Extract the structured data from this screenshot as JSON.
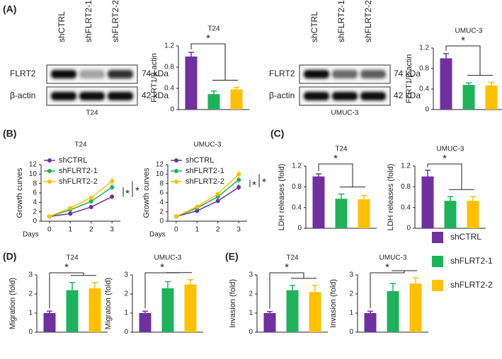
{
  "panel_labels": [
    "(A)",
    "(B)",
    "(C)",
    "(D)",
    "(E)"
  ],
  "blots": [
    {
      "lanes": [
        "shCTRL",
        "shFLRT2-1",
        "shFLRT2-2"
      ],
      "rows": [
        {
          "protein": "FLRT2",
          "size": "74 kDa"
        },
        {
          "protein": "β-actin",
          "size": "42 kDa"
        }
      ],
      "cell_line": "T24"
    },
    {
      "lanes": [
        "shCTRL",
        "shFLRT2-1",
        "shFLRT2-2"
      ],
      "rows": [
        {
          "protein": "FLRT2",
          "size": "74 kDa"
        },
        {
          "protein": "β-actin",
          "size": "42 kDa"
        }
      ],
      "cell_line": "UMUC-3"
    }
  ],
  "legend": [
    {
      "name": "shCTRL",
      "color": "#7030a0"
    },
    {
      "name": "shFLRT2-1",
      "color": "#1db35a"
    },
    {
      "name": "shFLRT2-2",
      "color": "#ffc000"
    }
  ],
  "chart_data": [
    {
      "type": "bar",
      "title": "T24",
      "y_label": "FLRT1/β-actin",
      "categories": [
        null,
        null,
        null
      ],
      "values": [
        1.0,
        0.29,
        0.38
      ],
      "errors": [
        0.08,
        0.06,
        0.04
      ],
      "colors": [
        "#7030a0",
        "#1db35a",
        "#ffc000"
      ],
      "ylim": [
        0,
        1.2
      ],
      "yticks": [
        0,
        0.4,
        0.8,
        1.2
      ],
      "annotations": [
        "*"
      ]
    },
    {
      "type": "bar",
      "title": "UMUC-3",
      "y_label": "FLRT1/β-actin",
      "categories": [
        null,
        null,
        null
      ],
      "values": [
        1.0,
        0.48,
        0.47
      ],
      "errors": [
        0.09,
        0.04,
        0.06
      ],
      "colors": [
        "#7030a0",
        "#1db35a",
        "#ffc000"
      ],
      "ylim": [
        0,
        1.2
      ],
      "yticks": [
        0,
        0.4,
        0.8,
        1.2
      ],
      "annotations": [
        "*"
      ]
    },
    {
      "type": "line",
      "title": "T24",
      "x_label": "Days",
      "y_label": "Growth curves",
      "x": [
        0,
        1,
        2,
        3
      ],
      "xlim": [
        -0.4,
        3.4
      ],
      "xticks": [
        0,
        1,
        2,
        3
      ],
      "ylim": [
        0,
        12
      ],
      "yticks": [
        0,
        2,
        4,
        6,
        8,
        10,
        12
      ],
      "series": [
        {
          "name": "shCTRL",
          "color": "#7030a0",
          "values": [
            1,
            1.6,
            3,
            5.2
          ],
          "errors": [
            0.1,
            0.2,
            0.3,
            0.5
          ]
        },
        {
          "name": "shFLRT2-1",
          "color": "#1db35a",
          "values": [
            1,
            2.4,
            4.2,
            7.2
          ],
          "errors": [
            0.1,
            0.2,
            0.3,
            0.6
          ]
        },
        {
          "name": "shFLRT2-2",
          "color": "#ffc000",
          "values": [
            1,
            2.8,
            5,
            8.5
          ],
          "errors": [
            0.1,
            0.3,
            0.4,
            0.8
          ]
        }
      ],
      "annotations": [
        "*",
        "*"
      ]
    },
    {
      "type": "line",
      "title": "UMUC-3",
      "x_label": "Days",
      "y_label": "Growth curves",
      "x": [
        0,
        1,
        2,
        3
      ],
      "xlim": [
        -0.4,
        3.4
      ],
      "xticks": [
        0,
        1,
        2,
        3
      ],
      "ylim": [
        0,
        12
      ],
      "yticks": [
        0,
        2,
        4,
        6,
        8,
        10,
        12
      ],
      "series": [
        {
          "name": "shCTRL",
          "color": "#7030a0",
          "values": [
            1,
            2.2,
            4.3,
            7.2
          ],
          "errors": [
            0.1,
            0.2,
            0.3,
            0.6
          ]
        },
        {
          "name": "shFLRT2-1",
          "color": "#1db35a",
          "values": [
            1,
            2.8,
            5.2,
            8.8
          ],
          "errors": [
            0.1,
            0.2,
            0.3,
            0.7
          ]
        },
        {
          "name": "shFLRT2-2",
          "color": "#ffc000",
          "values": [
            1,
            3.1,
            5.8,
            10
          ],
          "errors": [
            0.1,
            0.3,
            0.4,
            0.8
          ]
        }
      ],
      "annotations": [
        "*",
        "*"
      ]
    },
    {
      "type": "bar",
      "title": "T24",
      "y_label": "LDH releases (fold)",
      "categories": [
        null,
        null,
        null
      ],
      "values": [
        1.0,
        0.57,
        0.56
      ],
      "errors": [
        0.05,
        0.09,
        0.07
      ],
      "colors": [
        "#7030a0",
        "#1db35a",
        "#ffc000"
      ],
      "ylim": [
        0,
        1.2
      ],
      "yticks": [
        0,
        0.4,
        0.8,
        1.2
      ],
      "annotations": [
        "*"
      ]
    },
    {
      "type": "bar",
      "title": "UMUC-3",
      "y_label": "LDH releases (fold)",
      "categories": [
        null,
        null,
        null
      ],
      "values": [
        1.0,
        0.53,
        0.53
      ],
      "errors": [
        0.12,
        0.08,
        0.08
      ],
      "colors": [
        "#7030a0",
        "#1db35a",
        "#ffc000"
      ],
      "ylim": [
        0,
        1.2
      ],
      "yticks": [
        0,
        0.4,
        0.8,
        1.2
      ],
      "annotations": [
        "*"
      ]
    },
    {
      "type": "bar",
      "title": "T24",
      "y_label": "Migration (fold)",
      "categories": [
        null,
        null,
        null
      ],
      "values": [
        1.0,
        2.2,
        2.3
      ],
      "errors": [
        0.1,
        0.4,
        0.3
      ],
      "colors": [
        "#7030a0",
        "#1db35a",
        "#ffc000"
      ],
      "ylim": [
        0,
        3
      ],
      "yticks": [
        0,
        1,
        2,
        3
      ],
      "annotations": [
        "*"
      ]
    },
    {
      "type": "bar",
      "title": "UMUC-3",
      "y_label": "Migration (fold)",
      "categories": [
        null,
        null,
        null
      ],
      "values": [
        1.0,
        2.3,
        2.5
      ],
      "errors": [
        0.1,
        0.35,
        0.25
      ],
      "colors": [
        "#7030a0",
        "#1db35a",
        "#ffc000"
      ],
      "ylim": [
        0,
        3
      ],
      "yticks": [
        0,
        1,
        2,
        3
      ],
      "annotations": [
        "*"
      ]
    },
    {
      "type": "bar",
      "title": "T24",
      "y_label": "Invasion (fold)",
      "categories": [
        null,
        null,
        null
      ],
      "values": [
        1.0,
        2.2,
        2.1
      ],
      "errors": [
        0.08,
        0.25,
        0.35
      ],
      "colors": [
        "#7030a0",
        "#1db35a",
        "#ffc000"
      ],
      "ylim": [
        0,
        3
      ],
      "yticks": [
        0,
        1,
        2,
        3
      ],
      "annotations": [
        "*"
      ]
    },
    {
      "type": "bar",
      "title": "UMUC-3",
      "y_label": "Invasion (fold)",
      "categories": [
        null,
        null,
        null
      ],
      "values": [
        1.0,
        2.15,
        2.55
      ],
      "errors": [
        0.1,
        0.4,
        0.3
      ],
      "colors": [
        "#7030a0",
        "#1db35a",
        "#ffc000"
      ],
      "ylim": [
        0,
        3
      ],
      "yticks": [
        0,
        1,
        2,
        3
      ],
      "annotations": [
        "*"
      ]
    }
  ]
}
